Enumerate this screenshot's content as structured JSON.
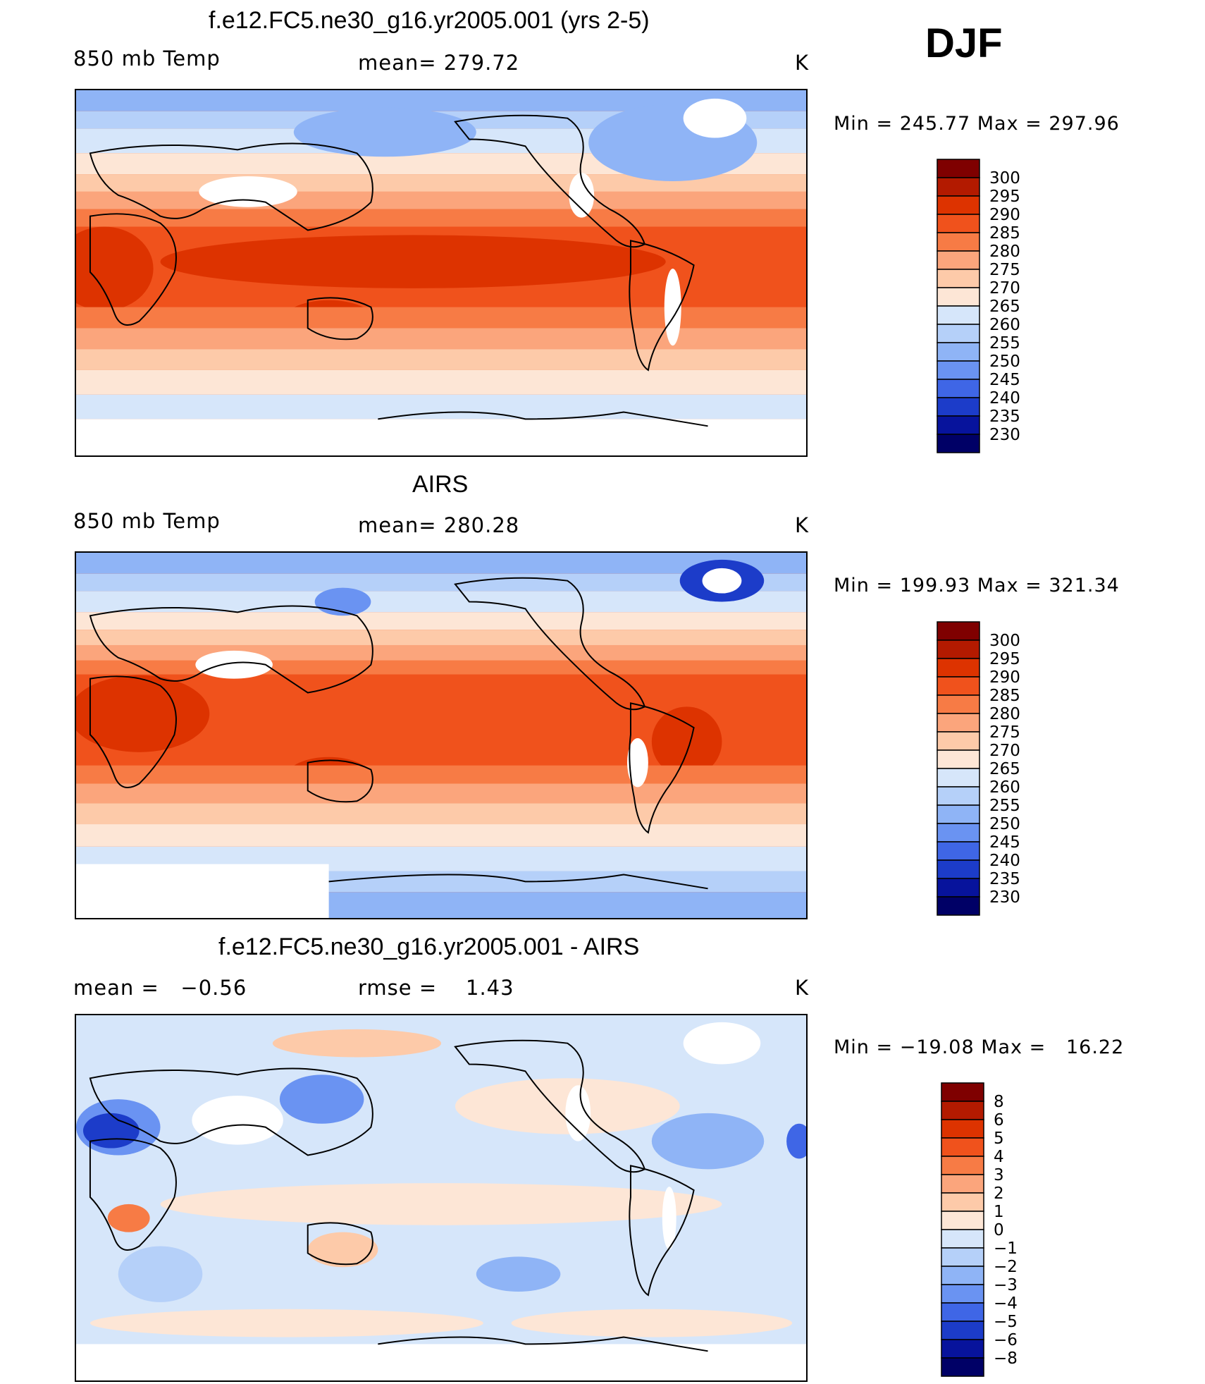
{
  "season": "DJF",
  "panels": [
    {
      "title": "f.e12.FC5.ne30_g16.yr2005.001 (yrs 2-5)",
      "left_label": "850 mb Temp",
      "center_label": "mean= 279.72",
      "units": "K",
      "minmax": "Min = 245.77 Max = 297.96"
    },
    {
      "title": "AIRS",
      "left_label": "850 mb Temp",
      "center_label": "mean= 280.28",
      "units": "K",
      "minmax": "Min = 199.93 Max = 321.34"
    },
    {
      "title": "f.e12.FC5.ne30_g16.yr2005.001 - AIRS",
      "left_label": "mean =   −0.56",
      "center_label": "rmse =    1.43",
      "units": "K",
      "minmax": "Min = −19.08 Max =   16.22"
    }
  ],
  "colorbars": {
    "temperature": {
      "labels": [
        "300",
        "295",
        "290",
        "285",
        "280",
        "275",
        "270",
        "265",
        "260",
        "255",
        "250",
        "245",
        "240",
        "235",
        "230"
      ],
      "colors": [
        "#7f0000",
        "#b31a00",
        "#dd3300",
        "#f0521c",
        "#f77b45",
        "#fba57c",
        "#fdcaa9",
        "#fde6d6",
        "#d6e6fa",
        "#b5d0f9",
        "#8fb4f6",
        "#6a93f2",
        "#3f66e6",
        "#1c3cc9",
        "#07139c",
        "#000066"
      ]
    },
    "difference": {
      "labels": [
        "8",
        "6",
        "5",
        "4",
        "3",
        "2",
        "1",
        "0",
        "−1",
        "−2",
        "−3",
        "−4",
        "−5",
        "−6",
        "−8"
      ],
      "colors": [
        "#7f0000",
        "#b31a00",
        "#dd3300",
        "#f0521c",
        "#f77b45",
        "#fba57c",
        "#fdcaa9",
        "#fde6d6",
        "#d6e6fa",
        "#b5d0f9",
        "#8fb4f6",
        "#6a93f2",
        "#3f66e6",
        "#1c3cc9",
        "#07139c",
        "#000066"
      ]
    }
  }
}
